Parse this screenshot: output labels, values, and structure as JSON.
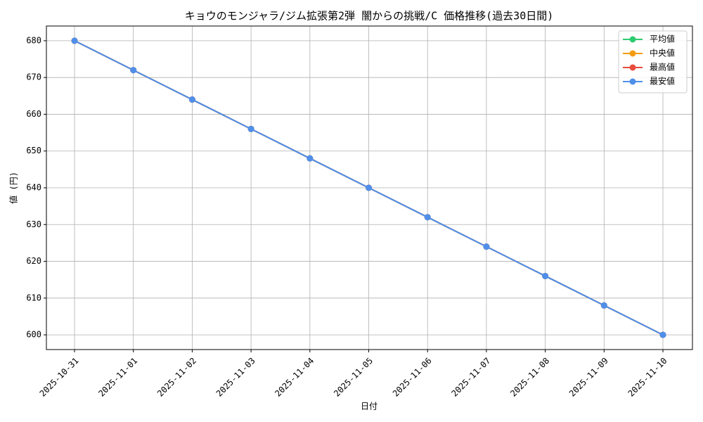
{
  "chart_data": {
    "type": "line",
    "title": "キョウのモンジャラ/ジム拡張第2弾 闇からの挑戦/C 価格推移(過去30日間)",
    "x_label": "日付",
    "y_label": "値 (円)",
    "categories": [
      "2025-10-31",
      "2025-11-01",
      "2025-11-02",
      "2025-11-03",
      "2025-11-04",
      "2025-11-05",
      "2025-11-06",
      "2025-11-07",
      "2025-11-08",
      "2025-11-09",
      "2025-11-10"
    ],
    "series": [
      {
        "name": "平均値",
        "color": "#2ecc71",
        "values": [
          680,
          672,
          664,
          656,
          648,
          640,
          632,
          624,
          616,
          608,
          600
        ]
      },
      {
        "name": "中央値",
        "color": "#f39c12",
        "values": [
          680,
          672,
          664,
          656,
          648,
          640,
          632,
          624,
          616,
          608,
          600
        ]
      },
      {
        "name": "最高値",
        "color": "#e74c3c",
        "values": [
          680,
          672,
          664,
          656,
          648,
          640,
          632,
          624,
          616,
          608,
          600
        ]
      },
      {
        "name": "最安値",
        "color": "#4f8fea",
        "values": [
          680,
          672,
          664,
          656,
          648,
          640,
          632,
          624,
          616,
          608,
          600
        ]
      }
    ],
    "ylim": [
      596,
      684
    ],
    "yticks": [
      600,
      610,
      620,
      630,
      640,
      650,
      660,
      670,
      680
    ],
    "grid": true,
    "legend": "upper right"
  }
}
